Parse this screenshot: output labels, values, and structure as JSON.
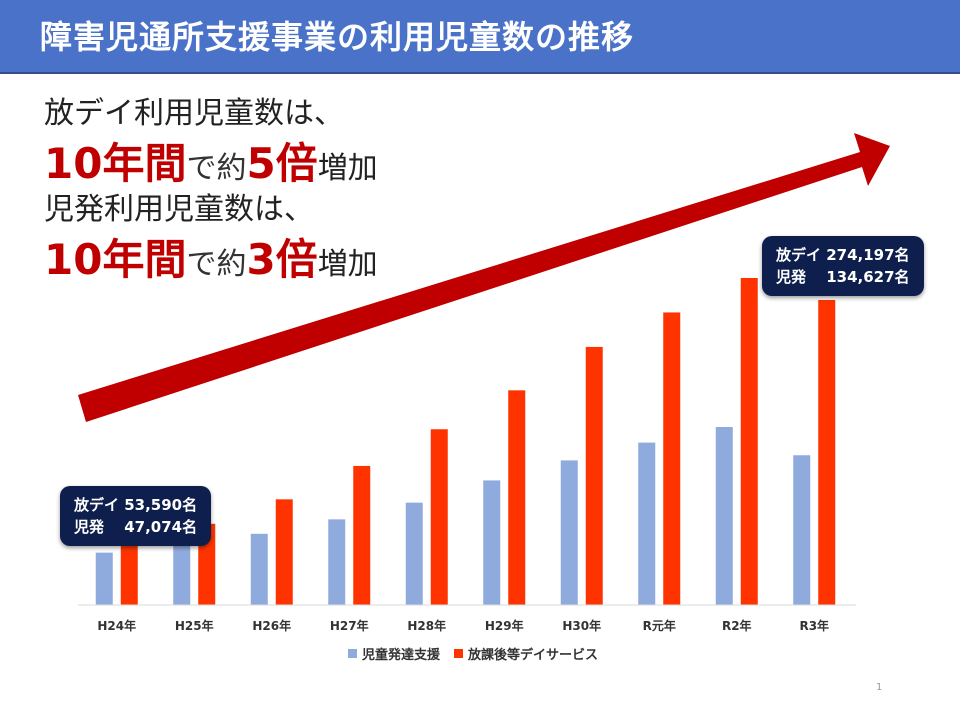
{
  "title": "障害児通所支援事業の利用児童数の推移",
  "headline": {
    "line1": "放デイ利用児童数は、",
    "line2_big": "10年間",
    "line2_mid": "で約",
    "line2_num": "5倍",
    "line2_end": "増加",
    "line3": "児発利用児童数は、",
    "line4_big": "10年間",
    "line4_mid": "で約",
    "line4_num": "3倍",
    "line4_end": "増加"
  },
  "callouts": {
    "left": "放デイ 53,590名\n児発　 47,074名",
    "right": "放デイ 274,197名\n児発　 134,627名"
  },
  "colors": {
    "jihatsu": "#8faadc",
    "houdei": "#ff3300",
    "arrow": "#c00000"
  },
  "chart_data": {
    "type": "bar",
    "categories": [
      "H24年",
      "H25年",
      "H26年",
      "H27年",
      "H28年",
      "H29年",
      "H30年",
      "R元年",
      "R2年",
      "R3年"
    ],
    "series": [
      {
        "name": "児童発達支援",
        "values": [
          47074,
          56000,
          64000,
          77000,
          92000,
          112000,
          130000,
          146000,
          160000,
          134627
        ]
      },
      {
        "name": "放課後等デイサービス",
        "values": [
          53590,
          73000,
          95000,
          125000,
          158000,
          193000,
          232000,
          263000,
          294000,
          274197
        ]
      }
    ],
    "title": "",
    "xlabel": "",
    "ylabel": "",
    "legend": "bottom",
    "grid": false
  },
  "page_number": "1"
}
